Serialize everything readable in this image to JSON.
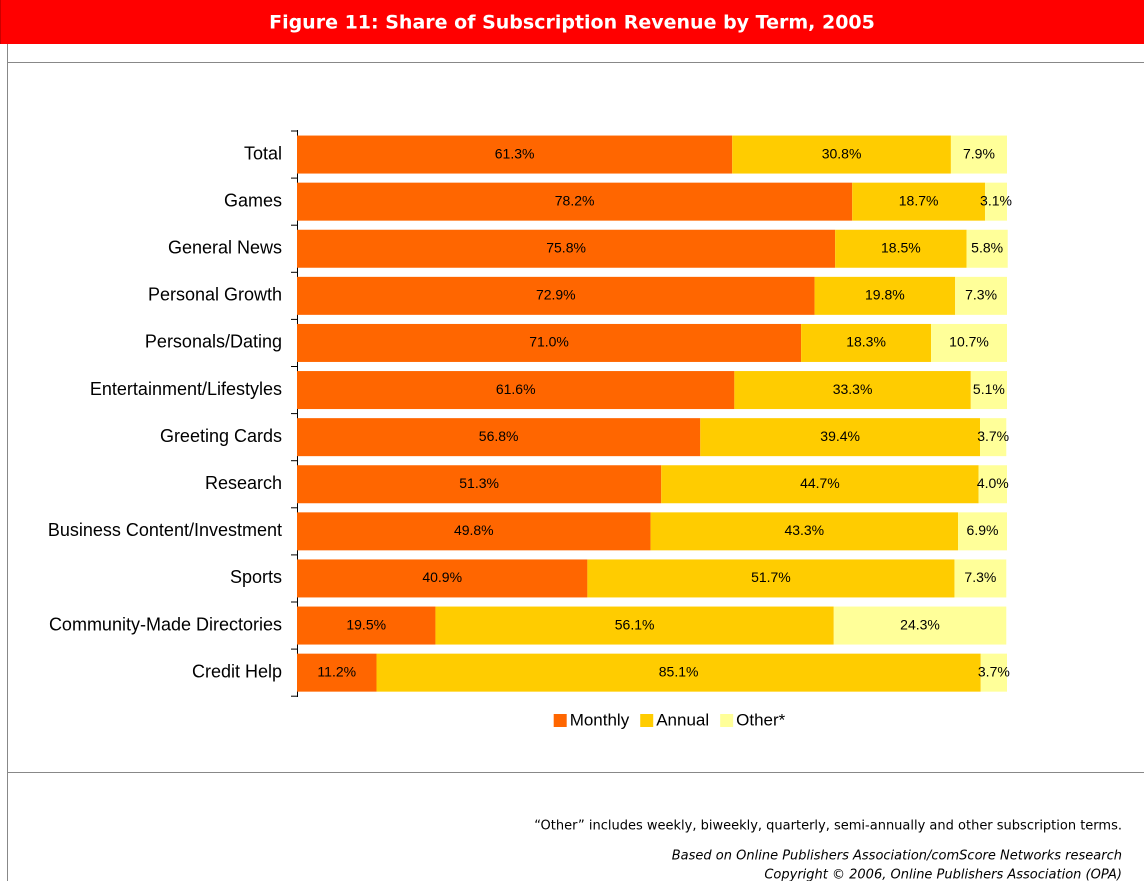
{
  "chart_data": {
    "type": "stacked-barh",
    "title": "Figure 11: Share of Subscription Revenue by Term, 2005",
    "categories": [
      "Total",
      "Games",
      "General News",
      "Personal Growth",
      "Personals/Dating",
      "Entertainment/Lifestyles",
      "Greeting Cards",
      "Research",
      "Business Content/Investment",
      "Sports",
      "Community-Made Directories",
      "Credit Help"
    ],
    "xlim": [
      0,
      100
    ],
    "series": [
      {
        "name": "Monthly",
        "color": "#ff6600",
        "values": [
          61.3,
          78.2,
          75.8,
          72.9,
          71.0,
          61.6,
          56.8,
          51.3,
          49.8,
          40.9,
          19.5,
          11.2
        ],
        "value_labels": [
          "61.3%",
          "78.2%",
          "75.8%",
          "72.9%",
          "71.0%",
          "61.6%",
          "56.8%",
          "51.3%",
          "49.8%",
          "40.9%",
          "19.5%",
          "11.2%"
        ]
      },
      {
        "name": "Annual",
        "color": "#ffcc00",
        "values": [
          30.8,
          18.7,
          18.5,
          19.8,
          18.3,
          33.3,
          39.4,
          44.7,
          43.3,
          51.7,
          56.1,
          85.1
        ],
        "value_labels": [
          "30.8%",
          "18.7%",
          "18.5%",
          "19.8%",
          "18.3%",
          "33.3%",
          "39.4%",
          "44.7%",
          "43.3%",
          "51.7%",
          "56.1%",
          "85.1%"
        ]
      },
      {
        "name": "Other*",
        "color": "#ffff99",
        "values": [
          7.9,
          3.1,
          5.8,
          7.3,
          10.7,
          5.1,
          3.7,
          4.0,
          6.9,
          7.3,
          24.3,
          3.7
        ],
        "value_labels": [
          "7.9%",
          "3.1%",
          "5.8%",
          "7.3%",
          "10.7%",
          "5.1%",
          "3.7%",
          "4.0%",
          "6.9%",
          "7.3%",
          "24.3%",
          "3.7%"
        ]
      }
    ],
    "legend": "bottom",
    "notes": [
      "“Other” includes weekly, biweekly, quarterly, semi-annually and other subscription terms.",
      "Based on Online Publishers Association/comScore Networks research",
      "Copyright © 2006, Online Publishers Association (OPA)"
    ]
  }
}
